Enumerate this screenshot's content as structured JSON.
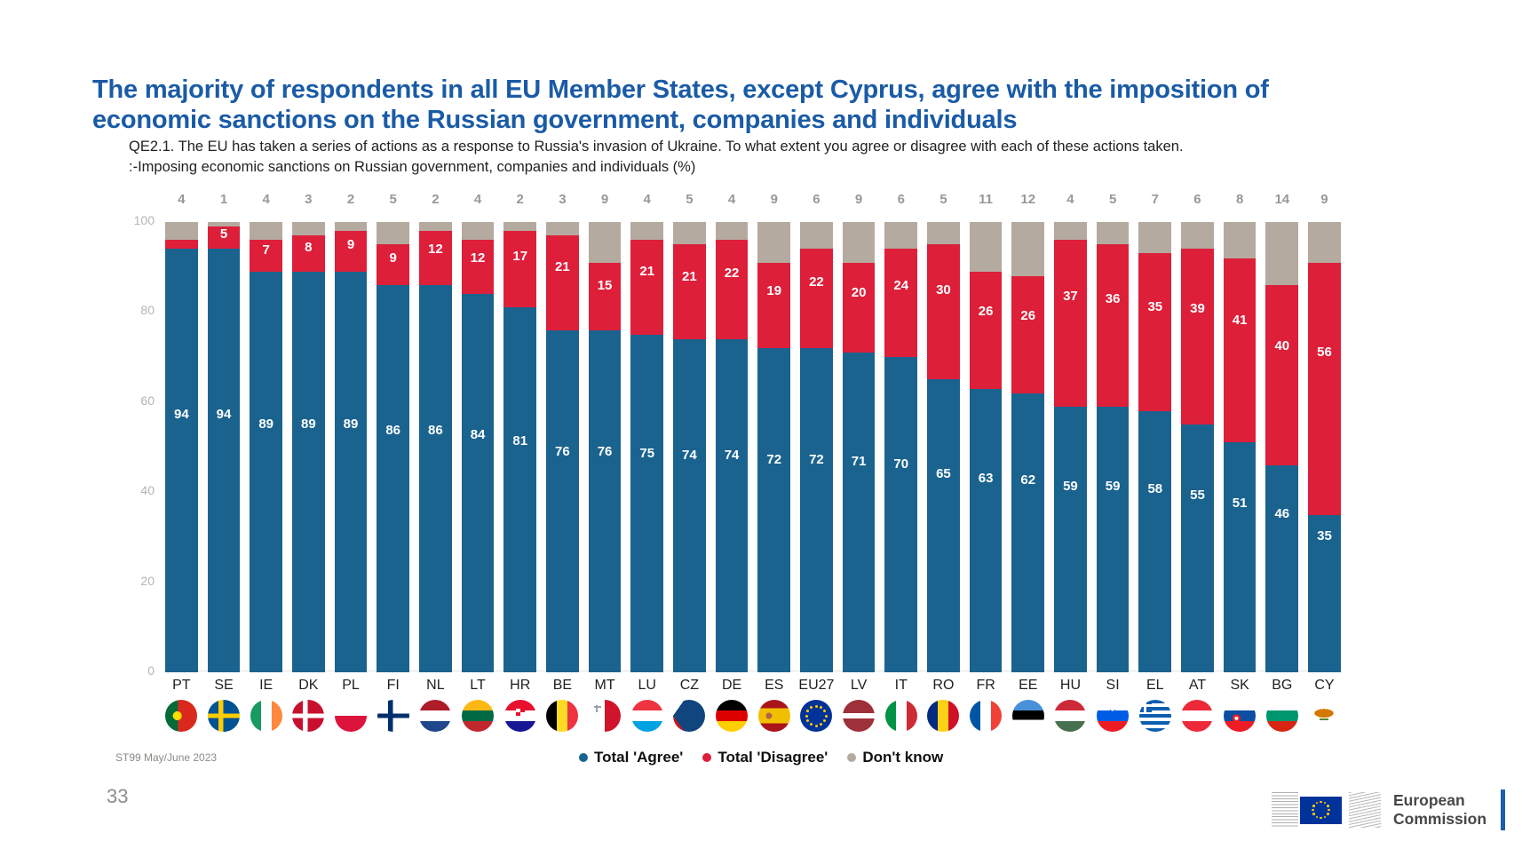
{
  "page": {
    "number": "33"
  },
  "logo": {
    "line1": "European",
    "line2": "Commission"
  },
  "chart_data": {
    "type": "bar",
    "stacked": true,
    "title": "The majority of respondents in all EU Member States, except Cyprus, agree with the imposition of economic sanctions on the Russian government, companies and individuals",
    "subtitle_line1": "QE2.1. The EU has taken a series of actions as a response to Russia's invasion of Ukraine. To what extent you agree or disagree with each of these actions taken.",
    "subtitle_line2": ":-Imposing economic sanctions on Russian government, companies and individuals (%)",
    "source": "ST99 May/June 2023",
    "xlabel": "",
    "ylabel": "",
    "ylim": [
      0,
      100
    ],
    "yticks": [
      0,
      20,
      40,
      60,
      80,
      100
    ],
    "grid": false,
    "legend_position": "bottom-center",
    "categories": [
      "PT",
      "SE",
      "IE",
      "DK",
      "PL",
      "FI",
      "NL",
      "LT",
      "HR",
      "BE",
      "MT",
      "LU",
      "CZ",
      "DE",
      "ES",
      "EU27",
      "LV",
      "IT",
      "RO",
      "FR",
      "EE",
      "HU",
      "SI",
      "EL",
      "AT",
      "SK",
      "BG",
      "CY"
    ],
    "series": [
      {
        "name": "Total 'Agree'",
        "color": "#1A638F",
        "values": [
          94,
          94,
          89,
          89,
          89,
          86,
          86,
          84,
          81,
          76,
          76,
          75,
          74,
          74,
          72,
          72,
          71,
          70,
          65,
          63,
          62,
          59,
          59,
          58,
          55,
          51,
          46,
          35
        ]
      },
      {
        "name": "Total 'Disagree'",
        "color": "#DD1F3A",
        "values": [
          2,
          5,
          7,
          8,
          9,
          9,
          12,
          12,
          17,
          21,
          15,
          21,
          21,
          22,
          19,
          22,
          20,
          24,
          30,
          26,
          26,
          37,
          36,
          35,
          39,
          41,
          40,
          56
        ]
      },
      {
        "name": "Don't know",
        "color": "#B5AAA0",
        "values": [
          4,
          1,
          4,
          3,
          2,
          5,
          2,
          4,
          2,
          3,
          9,
          4,
          5,
          4,
          9,
          6,
          9,
          6,
          5,
          11,
          12,
          4,
          5,
          7,
          6,
          8,
          14,
          9
        ]
      }
    ]
  },
  "colors": {
    "title_blue": "#1A5BA6",
    "agree": "#1A638F",
    "disagree": "#DD1F3A",
    "dont_know": "#B5AAA0",
    "axis_gray": "#B4B4B4",
    "eu_flag_blue": "#003399",
    "eu_star_yellow": "#FFCC00"
  },
  "flags": {
    "PT": "radial-gradient(circle at 38% 50%, #FFDD00 0 5px, rgba(0,0,0,0) 5px), linear-gradient(90deg, #046A38 0 40%, #DA291C 40%)",
    "SE": "linear-gradient(90deg, rgba(0,0,0,0) 0 34%, #FECC02 34% 48%, rgba(0,0,0,0) 48%), linear-gradient(180deg, rgba(0,0,0,0) 0 43%, #FECC02 43% 57%, rgba(0,0,0,0) 57%), linear-gradient(#005293,#005293)",
    "IE": "linear-gradient(90deg, #169B62 0 33%, #FFFFFF 33% 67%, #FF883E 67%)",
    "DK": "linear-gradient(90deg, rgba(0,0,0,0) 0 34%, #FFFFFF 34% 48%, rgba(0,0,0,0) 48%), linear-gradient(180deg, rgba(0,0,0,0) 0 43%, #FFFFFF 43% 57%, rgba(0,0,0,0) 57%), linear-gradient(#C8102E,#C8102E)",
    "PL": "linear-gradient(180deg, #FFFFFF 0 50%, #DC143C 50%)",
    "FI": "linear-gradient(90deg, rgba(0,0,0,0) 0 34%, #002F6C 34% 48%, rgba(0,0,0,0) 48%), linear-gradient(180deg, rgba(0,0,0,0) 0 43%, #002F6C 43% 57%, rgba(0,0,0,0) 57%), linear-gradient(#FFFFFF,#FFFFFF)",
    "NL": "linear-gradient(180deg, #AE1C28 0 33%, #FFFFFF 33% 67%, #21468B 67%)",
    "LT": "linear-gradient(180deg, #FDB913 0 34%, #006A44 34% 67%, #C1272D 67%)",
    "HR": "repeating-conic-gradient(#E8112D 0 90deg, #FFFFFF 90deg 180deg) 50% 36% / 10px 8px no-repeat, linear-gradient(180deg, #E8112D 0 33%, #FFFFFF 33% 67%, #171796 67%)",
    "BE": "linear-gradient(90deg, #000000 0 33%, #FDDA24 33% 67%, #EF3340 67%)",
    "MT": "linear-gradient(#9BA3A8,#9BA3A8) 22% 20% / 8px 2px no-repeat, linear-gradient(#9BA3A8,#9BA3A8) 22% 20% / 2px 8px no-repeat, linear-gradient(90deg, #FFFFFF 0 50%, #CF142B 50%)",
    "LU": "linear-gradient(180deg, #EF3340 0 34%, #FFFFFF 34% 67%, #00A2E1 67%)",
    "CZ": "conic-gradient(from 35deg at 0% 50%, #11457E 0 110deg, rgba(0,0,0,0) 110deg), linear-gradient(180deg, #FFFFFF 0 50%, #D7141A 50%)",
    "DE": "linear-gradient(180deg, #000000 0 33%, #DD0000 33% 67%, #FFCE00 67%)",
    "ES": "radial-gradient(circle at 33% 50%, #B0654C 0 3.5px, rgba(0,0,0,0) 3.5px), linear-gradient(180deg, #AA151B 0 27%, #F1BF00 27% 73%, #AA151B 73%)",
    "EU27": "#003399",
    "LV": "linear-gradient(180deg, #9E3039 0 41%, #FFFFFF 41% 59%, #9E3039 59%)",
    "IT": "linear-gradient(90deg, #009246 0 33%, #FFFFFF 33% 67%, #CE2B37 67%)",
    "RO": "linear-gradient(90deg, #002B7F 0 33%, #FCD116 33% 67%, #CE1126 67%)",
    "FR": "linear-gradient(90deg, #0055A4 0 33%, #FFFFFF 33% 67%, #EF4135 67%)",
    "EE": "linear-gradient(180deg, #4891D9 0 34%, #000000 34% 62%, #FFFFFF 62%)",
    "HU": "linear-gradient(180deg, #CE2939 0 33%, #FFFFFF 33% 67%, #477050 67%)",
    "SI": "radial-gradient(circle at 50% 26%, #FFFFFF 0 3px, rgba(0,0,0,0) 3px), radial-gradient(circle at 50% 34%, #005CE5 0 3px, rgba(0,0,0,0) 3px), linear-gradient(180deg, #FFFFFF 0 33%, #005CE5 33% 67%, #ED1C24 67%)",
    "EL": "linear-gradient(90deg, rgba(0,0,0,0) 0 5px, #FFFFFF 5px 8px, rgba(0,0,0,0) 8px) 0 0 / 14px 14px no-repeat, linear-gradient(180deg, rgba(0,0,0,0) 0 5px, #FFFFFF 5px 8px, rgba(0,0,0,0) 8px) 0 0 / 14px 14px no-repeat, linear-gradient(#0D5EAF,#0D5EAF) 0 0 / 14px 14px no-repeat, repeating-linear-gradient(180deg, #0D5EAF 0 4px, #FFFFFF 4px 8px)",
    "AT": "linear-gradient(180deg, #ED2939 0 33%, #FFFFFF 33% 67%, #ED2939 67%)",
    "SK": "radial-gradient(circle at 40% 58%, #FFFFFF 0 2px, rgba(0,0,0,0) 2px), radial-gradient(circle at 40% 58%, #EE1C25 0 4.5px, rgba(0,0,0,0) 4.5px), linear-gradient(180deg, #FFFFFF 0 33%, #0B4EA2 33% 67%, #EE1C25 67%)",
    "BG": "linear-gradient(180deg, #FFFFFF 0 33%, #00966E 33% 67%, #D62612 67%)",
    "CY": "linear-gradient(#5B8930,#5B8930) 50% 62% / 10px 2px no-repeat, radial-gradient(11px 5px at 50% 42%, #D57800 0 98%, rgba(0,0,0,0) 98%), linear-gradient(#FFFFFF,#FFFFFF)"
  }
}
